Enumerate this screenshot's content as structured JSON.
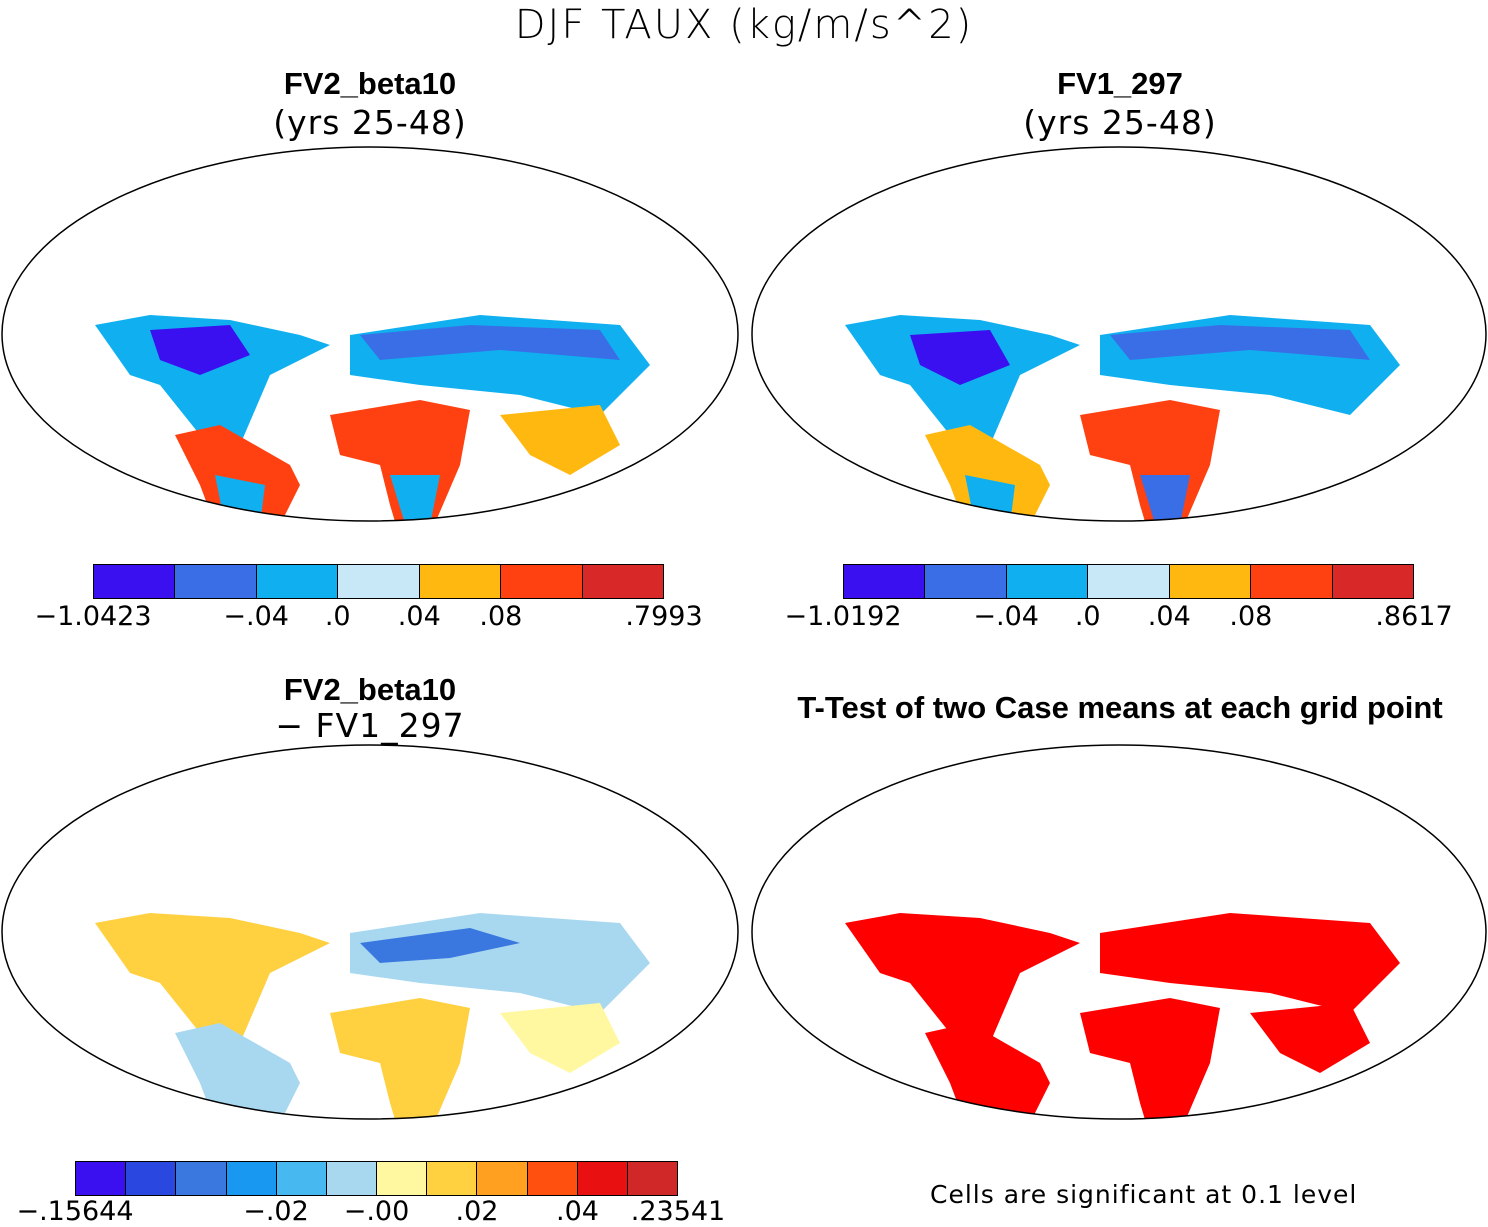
{
  "title": "DJF TAUX (kg/m/s^2)",
  "panels": [
    {
      "title": "FV2_beta10",
      "subtitle": "(yrs 25-48)"
    },
    {
      "title": "FV1_297",
      "subtitle": "(yrs 25-48)"
    },
    {
      "title": "FV2_beta10",
      "subtitle": "− FV1_297"
    },
    {
      "title": "T-Test of two Case means at each grid point",
      "subtitle": ""
    }
  ],
  "colorbars": [
    {
      "colors": [
        "#3a10f0",
        "#3a6ee6",
        "#10b0f0",
        "#c8e8f8",
        "#ffb810",
        "#ff4010",
        "#d82828"
      ],
      "labels": [
        "−1.0423",
        "−.04",
        ".0",
        ".04",
        ".08",
        ".7993"
      ]
    },
    {
      "colors": [
        "#3a10f0",
        "#3a6ee6",
        "#10b0f0",
        "#c8e8f8",
        "#ffb810",
        "#ff4010",
        "#d82828"
      ],
      "labels": [
        "−1.0192",
        "−.04",
        ".0",
        ".04",
        ".08",
        ".8617"
      ]
    },
    {
      "colors": [
        "#3a10f0",
        "#2a48e0",
        "#3a78e0",
        "#1898f0",
        "#48b8f0",
        "#a8d8f0",
        "#fff8a0",
        "#ffd040",
        "#ffa020",
        "#ff5010",
        "#e81010",
        "#d02828"
      ],
      "labels": [
        "−.15644",
        "−.02",
        "−.00",
        ".02",
        ".04",
        ".23541"
      ]
    }
  ],
  "ttest_note": "Cells are significant at 0.1 level",
  "ttest_color": "#ff0000"
}
